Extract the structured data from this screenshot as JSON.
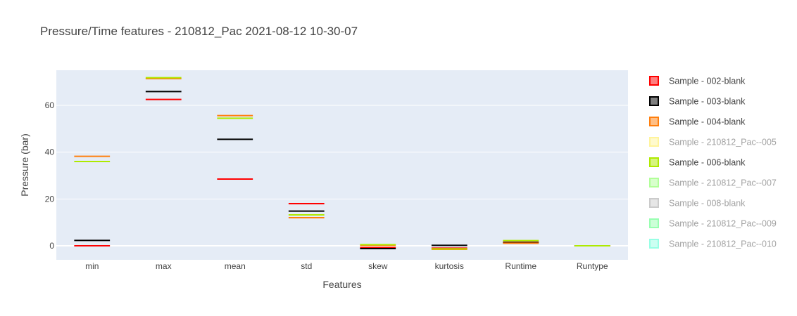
{
  "chart_data": {
    "type": "box",
    "title": "Pressure/Time features - 210812_Pac 2021-08-12 10-30-07",
    "xlabel": "Features",
    "ylabel": "Pressure (bar)",
    "categories": [
      "min",
      "max",
      "mean",
      "std",
      "skew",
      "kurtosis",
      "Runtime",
      "Runtype"
    ],
    "ylim": [
      -6,
      75
    ],
    "yticks": [
      0,
      20,
      40,
      60
    ],
    "grid": true,
    "background_color": "#e5ecf6",
    "legend_position": "right",
    "series": [
      {
        "name": "Sample - 002-blank",
        "color": "#ff0000",
        "visible": true,
        "values": [
          0.0,
          62.5,
          28.5,
          18.0,
          -0.8,
          -1.0,
          1.5,
          0.0
        ]
      },
      {
        "name": "Sample - 003-blank",
        "color": "#000000",
        "visible": true,
        "values": [
          2.3,
          65.9,
          45.5,
          14.8,
          -1.2,
          0.2,
          1.4,
          0.0
        ]
      },
      {
        "name": "Sample - 004-blank",
        "color": "#ff7f0e",
        "visible": true,
        "values": [
          38.2,
          71.4,
          55.6,
          12.0,
          0.2,
          -1.5,
          1.1,
          0.0
        ]
      },
      {
        "name": "Sample - 210812_Pac--005",
        "color": "#ffeb3b",
        "visible": false,
        "values": []
      },
      {
        "name": "Sample - 006-blank",
        "color": "#aeea00",
        "visible": true,
        "values": [
          36.0,
          71.8,
          54.5,
          13.2,
          0.5,
          -1.3,
          2.2,
          0.0
        ]
      },
      {
        "name": "Sample - 210812_Pac--007",
        "color": "#66ff33",
        "visible": false,
        "values": []
      },
      {
        "name": "Sample - 008-blank",
        "color": "#999999",
        "visible": false,
        "values": []
      },
      {
        "name": "Sample - 210812_Pac--009",
        "color": "#33ff66",
        "visible": false,
        "values": []
      },
      {
        "name": "Sample - 210812_Pac--010",
        "color": "#33ffcc",
        "visible": false,
        "values": []
      }
    ]
  }
}
